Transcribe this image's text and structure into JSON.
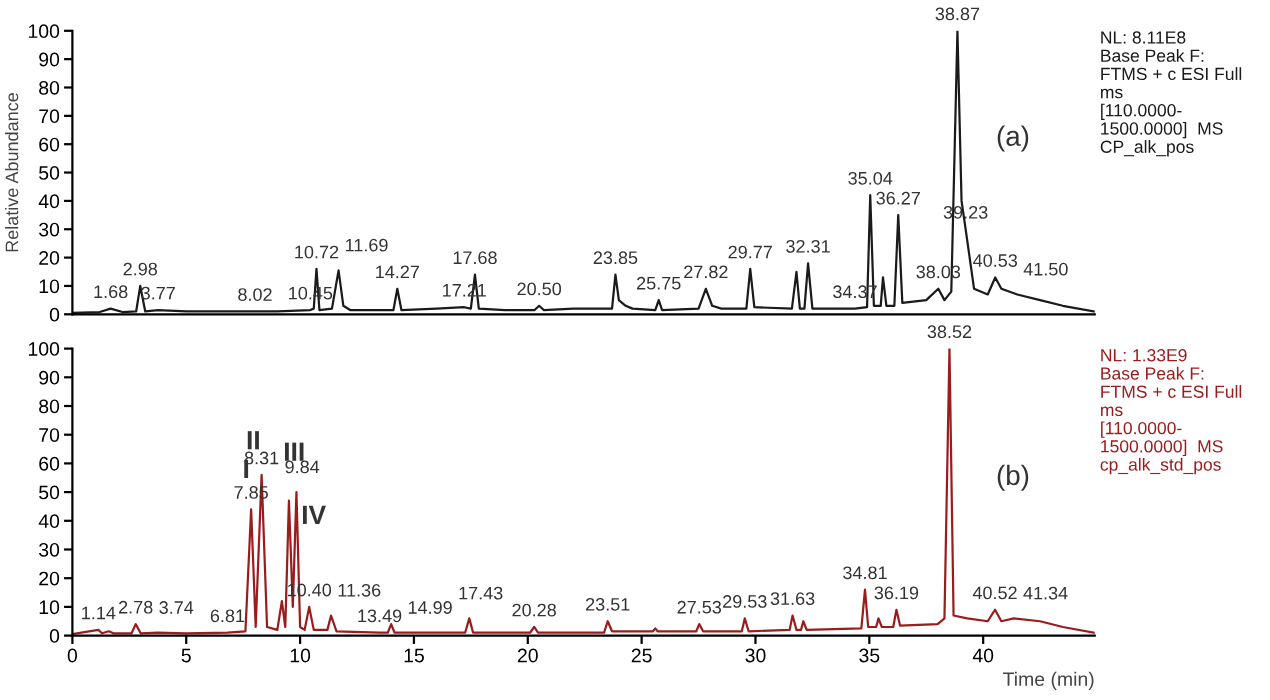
{
  "chart_data": [
    {
      "type": "line",
      "ylabel": "Relative Abundance",
      "xlim": [
        0,
        44.9
      ],
      "ylim": [
        0,
        100
      ],
      "yticks": [
        0,
        10,
        20,
        30,
        40,
        50,
        60,
        70,
        80,
        90,
        100
      ],
      "tick_labels": "y",
      "grid": false,
      "marker": "none",
      "line_style": "solid",
      "series": [
        {
          "color": "#1a1a1a",
          "x": [
            0,
            1.2,
            1.68,
            2.2,
            2.8,
            2.98,
            3.2,
            3.77,
            5,
            6,
            8.02,
            9,
            10.45,
            10.6,
            10.72,
            10.85,
            11.4,
            11.69,
            11.9,
            12.2,
            14.1,
            14.27,
            14.45,
            16,
            17.21,
            17.5,
            17.68,
            17.85,
            19,
            20.3,
            20.5,
            20.7,
            22,
            23.7,
            23.85,
            24.0,
            24.3,
            24.6,
            25.6,
            25.75,
            25.9,
            27.5,
            27.82,
            28.1,
            28.5,
            29.6,
            29.77,
            29.95,
            31.6,
            31.8,
            31.95,
            32.15,
            32.31,
            32.5,
            34.37,
            34.9,
            35.04,
            35.2,
            35.5,
            35.6,
            35.75,
            36.1,
            36.27,
            36.45,
            37.5,
            38.03,
            38.3,
            38.6,
            38.87,
            39.05,
            39.23,
            39.6,
            40.2,
            40.53,
            40.8,
            41.5,
            42.5,
            43.5,
            44.9
          ],
          "values": [
            0.5,
            0.8,
            2,
            0.8,
            1,
            10,
            1,
            1.5,
            1,
            1,
            1,
            1,
            1.5,
            2,
            16,
            1.5,
            2,
            15.5,
            3,
            1.5,
            1.5,
            9,
            1.5,
            2,
            2.5,
            2,
            14,
            2,
            1.5,
            1.5,
            3,
            1.5,
            2,
            2,
            14,
            5,
            3,
            2,
            1.5,
            5,
            1.5,
            2,
            9,
            3,
            2,
            2,
            16,
            2.5,
            2,
            15,
            2,
            2,
            18,
            2,
            2,
            2.5,
            42,
            3,
            3,
            13,
            3,
            3,
            35,
            4,
            5,
            9,
            5,
            8,
            100,
            40,
            30,
            9,
            7,
            13,
            9,
            7,
            5,
            3,
            1
          ]
        }
      ],
      "annotations": [
        "NL: 8.11E8\nBase Peak F:\nFTMS + c ESI Full\nms\n[110.0000-\n1500.0000]  MS\nCP_alk_pos",
        "(a)",
        {
          "text": "1.68",
          "x": 1.68,
          "y": 2
        },
        {
          "text": "2.98",
          "x": 2.98,
          "y": 10
        },
        {
          "text": "3.77",
          "x": 3.77,
          "y": 1.5
        },
        {
          "text": "8.02",
          "x": 8.02,
          "y": 1
        },
        {
          "text": "10.45",
          "x": 10.45,
          "y": 1.5
        },
        {
          "text": "10.72",
          "x": 10.72,
          "y": 16
        },
        {
          "text": "11.69",
          "x": 11.69,
          "y": 15.5
        },
        {
          "text": "14.27",
          "x": 14.27,
          "y": 9
        },
        {
          "text": "17.21",
          "x": 17.21,
          "y": 2.5
        },
        {
          "text": "17.68",
          "x": 17.68,
          "y": 14
        },
        {
          "text": "20.50",
          "x": 20.5,
          "y": 3
        },
        {
          "text": "23.85",
          "x": 23.85,
          "y": 14
        },
        {
          "text": "25.75",
          "x": 25.75,
          "y": 5
        },
        {
          "text": "27.82",
          "x": 27.82,
          "y": 9
        },
        {
          "text": "29.77",
          "x": 29.77,
          "y": 16
        },
        {
          "text": "32.31",
          "x": 32.31,
          "y": 18
        },
        {
          "text": "34.37",
          "x": 34.37,
          "y": 2
        },
        {
          "text": "35.04",
          "x": 35.04,
          "y": 42
        },
        {
          "text": "36.27",
          "x": 36.27,
          "y": 35
        },
        {
          "text": "38.03",
          "x": 38.03,
          "y": 9
        },
        {
          "text": "38.87",
          "x": 38.87,
          "y": 100
        },
        {
          "text": "39.23",
          "x": 39.23,
          "y": 30
        },
        {
          "text": "40.53",
          "x": 40.53,
          "y": 13
        },
        {
          "text": "41.50",
          "x": 41.5,
          "y": 7
        }
      ]
    },
    {
      "type": "line",
      "xlabel": "Time (min)",
      "xlim": [
        0,
        44.9
      ],
      "xticks": [
        0,
        5,
        10,
        15,
        20,
        25,
        30,
        35,
        40
      ],
      "ylim": [
        0,
        100
      ],
      "yticks": [
        0,
        10,
        20,
        30,
        40,
        50,
        60,
        70,
        80,
        90,
        100
      ],
      "grid": false,
      "marker": "none",
      "line_style": "solid",
      "series": [
        {
          "color": "#9b1c1c",
          "x": [
            0,
            1.14,
            1.3,
            1.6,
            1.8,
            2.6,
            2.78,
            3,
            3.74,
            5,
            6.81,
            7.6,
            7.85,
            8.05,
            8.31,
            8.55,
            9.0,
            9.2,
            9.35,
            9.51,
            9.68,
            9.84,
            10.0,
            10.2,
            10.4,
            10.6,
            11.2,
            11.36,
            11.6,
            13.49,
            13.85,
            14.0,
            14.15,
            14.99,
            17.25,
            17.43,
            17.6,
            20.1,
            20.28,
            20.45,
            23.35,
            23.51,
            23.7,
            25.5,
            25.6,
            25.7,
            27.4,
            27.53,
            27.7,
            29.4,
            29.53,
            29.7,
            31.5,
            31.63,
            31.8,
            32.0,
            32.1,
            32.25,
            34.65,
            34.81,
            34.95,
            35.3,
            35.4,
            35.55,
            36.05,
            36.19,
            36.35,
            38.0,
            38.3,
            38.52,
            38.7,
            39.3,
            40.2,
            40.52,
            40.8,
            41.34,
            42.5,
            43.5,
            44.9
          ],
          "values": [
            0.5,
            2,
            0.8,
            1.5,
            0.8,
            0.8,
            4,
            0.8,
            1,
            0.8,
            1,
            1.5,
            44,
            3,
            56,
            3,
            2,
            12,
            3,
            47,
            10,
            50,
            3,
            2,
            10,
            2,
            2,
            7,
            1.5,
            1,
            1,
            4,
            1,
            1,
            1,
            6,
            1,
            1,
            3,
            1,
            1,
            5,
            1.5,
            1.5,
            2.5,
            1.5,
            1.5,
            4,
            1.5,
            1.5,
            6,
            1.5,
            2,
            7,
            2,
            2,
            5,
            2,
            2.5,
            16,
            3,
            3,
            6,
            3,
            3,
            9,
            3.5,
            4,
            6,
            100,
            7,
            6,
            5,
            9,
            5,
            6,
            5,
            3,
            1
          ]
        }
      ],
      "annotations": [
        "NL: 1.33E9\nBase Peak F:\nFTMS + c ESI Full\nms\n[110.0000-\n1500.0000]  MS\ncp_alk_std_pos",
        "(b)",
        "I",
        "II",
        "III",
        "IV",
        {
          "text": "1.14",
          "x": 1.14,
          "y": 2
        },
        {
          "text": "2.78",
          "x": 2.78,
          "y": 4
        },
        {
          "text": "3.74",
          "x": 3.74,
          "y": 1
        },
        {
          "text": "6.81",
          "x": 6.81,
          "y": 1
        },
        {
          "text": "7.85",
          "x": 7.85,
          "y": 44
        },
        {
          "text": "8.31",
          "x": 8.31,
          "y": 56
        },
        {
          "text": "9.84",
          "x": 9.84,
          "y": 50
        },
        {
          "text": "10.40",
          "x": 10.4,
          "y": 10
        },
        {
          "text": "11.36",
          "x": 11.36,
          "y": 7
        },
        {
          "text": "13.49",
          "x": 13.49,
          "y": 1
        },
        {
          "text": "14.99",
          "x": 14.99,
          "y": 1
        },
        {
          "text": "17.43",
          "x": 17.43,
          "y": 6
        },
        {
          "text": "20.28",
          "x": 20.28,
          "y": 3
        },
        {
          "text": "23.51",
          "x": 23.51,
          "y": 5
        },
        {
          "text": "27.53",
          "x": 27.53,
          "y": 4
        },
        {
          "text": "29.53",
          "x": 29.53,
          "y": 6
        },
        {
          "text": "31.63",
          "x": 31.63,
          "y": 7
        },
        {
          "text": "34.81",
          "x": 34.81,
          "y": 16
        },
        {
          "text": "36.19",
          "x": 36.19,
          "y": 9
        },
        {
          "text": "38.52",
          "x": 38.52,
          "y": 100
        },
        {
          "text": "40.52",
          "x": 40.52,
          "y": 9
        },
        {
          "text": "41.34",
          "x": 41.34,
          "y": 6
        }
      ]
    }
  ]
}
